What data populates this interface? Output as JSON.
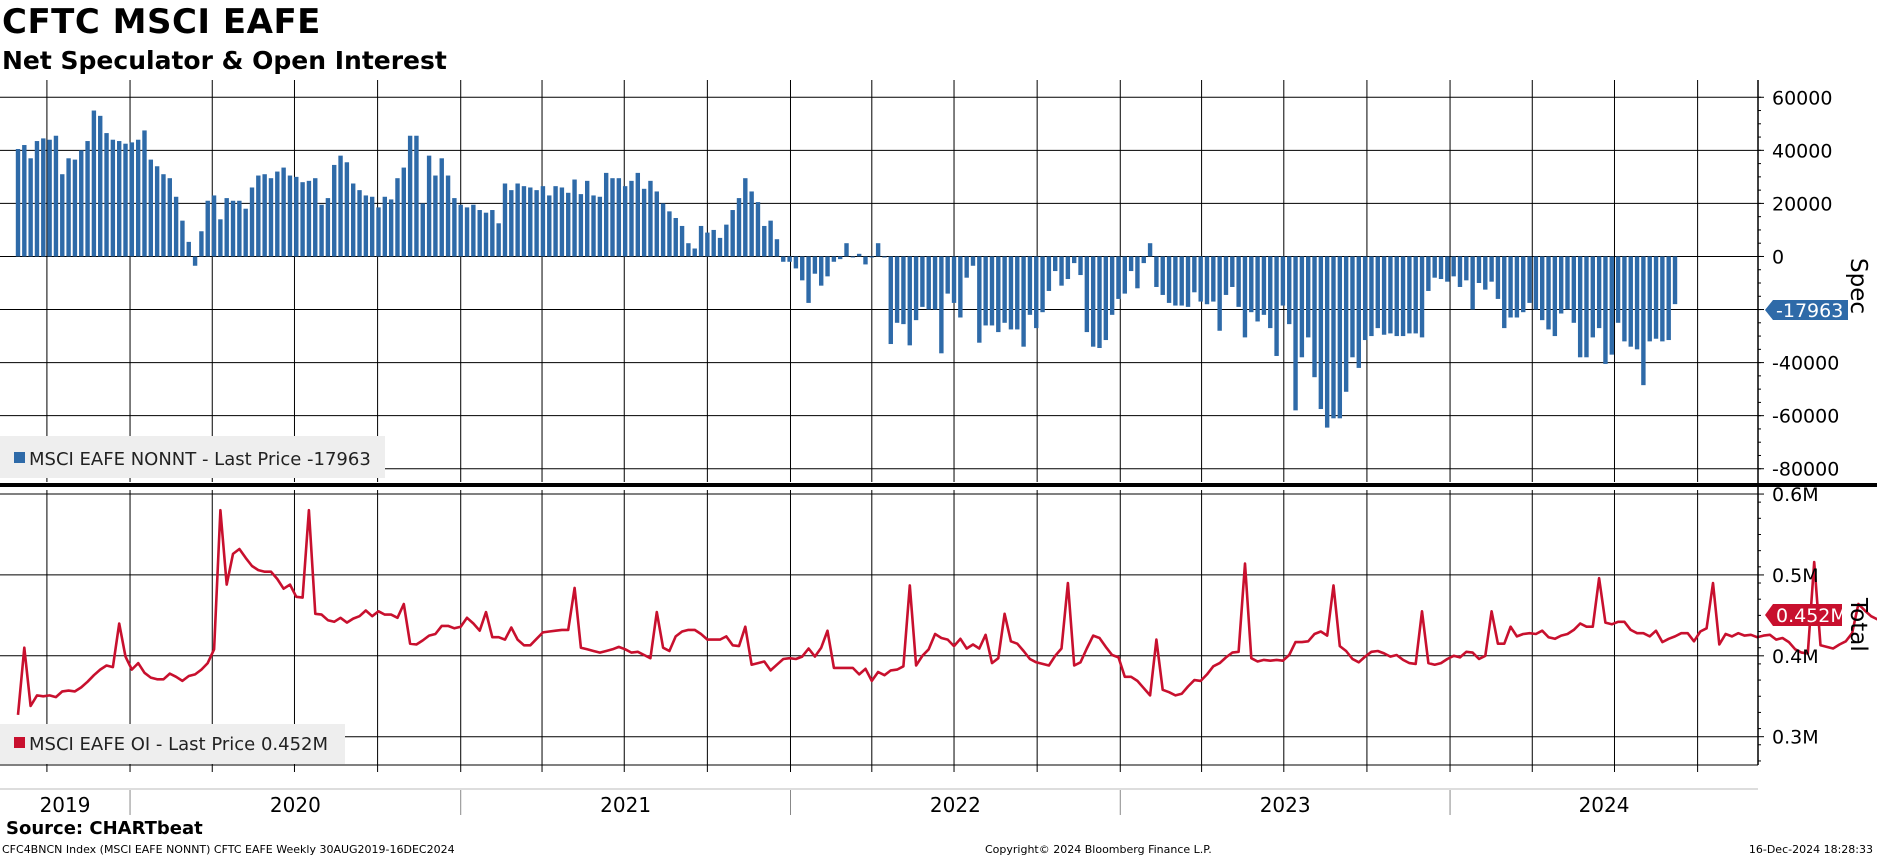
{
  "header": {
    "title": "CFTC MSCI EAFE",
    "subtitle": "Net Speculator & Open Interest"
  },
  "footer": {
    "source": "Source: CHARTbeat",
    "left": "CFC4BNCN Index (MSCI EAFE NONNT) CFTC EAFE  Weekly 30AUG2019-16DEC2024",
    "center": "Copyright© 2024 Bloomberg Finance L.P.",
    "right": "16-Dec-2024 18:28:33"
  },
  "colors": {
    "spec_bar": "#2e6aa8",
    "oi_line": "#c8102e",
    "grid": "#000000",
    "legend_bg": "#eeeeee"
  },
  "chart_data": [
    {
      "type": "bar",
      "panel": "top",
      "x_start": "2019-08-30",
      "x_end": "2024-12-16",
      "frequency": "weekly",
      "x_tick_labels": [
        "2019",
        "2020",
        "2021",
        "2022",
        "2023",
        "2024"
      ],
      "ylabel": "Spec",
      "ylim": [
        -85000,
        65000
      ],
      "yticks": [
        60000,
        40000,
        20000,
        0,
        -40000,
        -60000,
        -80000
      ],
      "ytick_labels": [
        "60000",
        "40000",
        "20000",
        "0",
        "-40000",
        "-60000",
        "-80000"
      ],
      "grid": true,
      "legend_position": "bottom-left",
      "legend": "MSCI EAFE NONNT - Last Price -17963",
      "last_value": -17963,
      "last_value_label": "-17963",
      "series": [
        {
          "values": [
            40500,
            42000,
            37000,
            43500,
            44500,
            44000,
            45500,
            31000,
            37000,
            36500,
            40000,
            43500,
            55000,
            53000,
            46500,
            44000,
            43500,
            42500,
            43000,
            44000,
            47500,
            36500,
            34000,
            31000,
            29500,
            22500,
            13500,
            5500,
            -3500,
            9500,
            21000,
            23000,
            14000,
            22000,
            21000,
            21000,
            18000,
            26000,
            30500,
            31000,
            29500,
            32000,
            33500,
            30500,
            30000,
            28000,
            28500,
            29500,
            19500,
            22000,
            34500,
            38000,
            35500,
            27500,
            25000,
            23000,
            22500,
            18500,
            22500,
            21500,
            29500,
            33500,
            45500,
            45500,
            20000,
            38000,
            30500,
            37000,
            30500,
            22000,
            19500,
            18500,
            19500,
            17500,
            16500,
            17500,
            12500,
            27500,
            25000,
            27500,
            26500,
            26000,
            25000,
            26500,
            23000,
            26500,
            26000,
            24000,
            29000,
            23500,
            28500,
            23000,
            22500,
            31500,
            29500,
            29500,
            26500,
            28500,
            31500,
            25500,
            28500,
            24500,
            20000,
            17000,
            14500,
            11500,
            5000,
            3000,
            11500,
            9000,
            10000,
            7000,
            12000,
            17500,
            22000,
            29500,
            24500,
            20500,
            11500,
            13500,
            6500,
            -2000,
            -2000,
            -4500,
            -9000,
            -17500,
            -6500,
            -11000,
            -7500,
            -2000,
            -1000,
            5000,
            0,
            1000,
            -3000,
            0,
            5000,
            0,
            -33000,
            -25000,
            -25500,
            -33500,
            -24000,
            -19000,
            -20000,
            -20000,
            -36500,
            -14000,
            -17500,
            -23000,
            -8000,
            -3500,
            -32500,
            -26000,
            -26000,
            -28500,
            -25000,
            -27500,
            -27500,
            -34000,
            -22000,
            -27000,
            -21000,
            -13000,
            -5500,
            -11000,
            -8500,
            -2500,
            -7000,
            -28500,
            -34000,
            -34500,
            -31500,
            -22000,
            -16000,
            -14000,
            -5500,
            -12000,
            -2500,
            5000,
            -11500,
            -14500,
            -17500,
            -18500,
            -18500,
            -19000,
            -13500,
            -17000,
            -18000,
            -17000,
            -28000,
            -14500,
            -11500,
            -19000,
            -30500,
            -21000,
            -24500,
            -22000,
            -27000,
            -37500,
            -18500,
            -25500,
            -58000,
            -38000,
            -30500,
            -45500,
            -57500,
            -64500,
            -61000,
            -61000,
            -51000,
            -38000,
            -42000,
            -31500,
            -30000,
            -27000,
            -29500,
            -29000,
            -30000,
            -30000,
            -29000,
            -29000,
            -30500,
            -13000,
            -8000,
            -8500,
            -9500,
            -7500,
            -11500,
            -9000,
            -20000,
            -10000,
            -12500,
            -9500,
            -16000,
            -27000,
            -23000,
            -23000,
            -21000,
            -17500,
            -20000,
            -24000,
            -27500,
            -30000,
            -21500,
            -20000,
            -25000,
            -38000,
            -38000,
            -30500,
            -27000,
            -40500,
            -37000,
            -25000,
            -32000,
            -34000,
            -35000,
            -48500,
            -32000,
            -31000,
            -32000,
            -31500,
            -17963
          ]
        }
      ]
    },
    {
      "type": "line",
      "panel": "bottom",
      "x_start": "2019-08-30",
      "x_end": "2024-12-16",
      "frequency": "weekly",
      "ylabel": "Total",
      "ylim": [
        0.265,
        0.605
      ],
      "yticks": [
        0.6,
        0.5,
        0.4,
        0.3
      ],
      "ytick_labels": [
        "0.6M",
        "0.5M",
        "0.4M",
        "0.3M"
      ],
      "grid": true,
      "legend_position": "bottom-left",
      "legend": "MSCI EAFE OI - Last Price 0.452M",
      "last_value": 0.452,
      "last_value_label": "0.452M",
      "series": [
        {
          "values": [
            0.327,
            0.41,
            0.338,
            0.351,
            0.35,
            0.351,
            0.349,
            0.356,
            0.357,
            0.356,
            0.361,
            0.368,
            0.376,
            0.383,
            0.388,
            0.386,
            0.44,
            0.399,
            0.383,
            0.391,
            0.379,
            0.373,
            0.371,
            0.371,
            0.378,
            0.374,
            0.369,
            0.375,
            0.377,
            0.383,
            0.391,
            0.408,
            0.58,
            0.488,
            0.526,
            0.532,
            0.521,
            0.511,
            0.506,
            0.504,
            0.504,
            0.495,
            0.483,
            0.488,
            0.473,
            0.472,
            0.58,
            0.452,
            0.451,
            0.444,
            0.442,
            0.447,
            0.441,
            0.446,
            0.449,
            0.456,
            0.449,
            0.455,
            0.451,
            0.451,
            0.447,
            0.464,
            0.415,
            0.414,
            0.419,
            0.425,
            0.427,
            0.437,
            0.437,
            0.434,
            0.436,
            0.447,
            0.44,
            0.431,
            0.454,
            0.423,
            0.423,
            0.42,
            0.435,
            0.42,
            0.413,
            0.413,
            0.421,
            0.429,
            0.43,
            0.431,
            0.432,
            0.432,
            0.484,
            0.41,
            0.408,
            0.406,
            0.404,
            0.406,
            0.408,
            0.411,
            0.408,
            0.404,
            0.405,
            0.401,
            0.397,
            0.454,
            0.41,
            0.406,
            0.424,
            0.43,
            0.432,
            0.432,
            0.427,
            0.42,
            0.42,
            0.42,
            0.424,
            0.413,
            0.412,
            0.436,
            0.389,
            0.391,
            0.393,
            0.382,
            0.389,
            0.396,
            0.397,
            0.396,
            0.399,
            0.409,
            0.399,
            0.41,
            0.431,
            0.385,
            0.385,
            0.385,
            0.385,
            0.377,
            0.384,
            0.369,
            0.38,
            0.376,
            0.382,
            0.383,
            0.387,
            0.487,
            0.388,
            0.4,
            0.408,
            0.427,
            0.422,
            0.42,
            0.412,
            0.421,
            0.409,
            0.414,
            0.409,
            0.426,
            0.391,
            0.397,
            0.452,
            0.418,
            0.415,
            0.406,
            0.396,
            0.392,
            0.39,
            0.388,
            0.4,
            0.409,
            0.49,
            0.388,
            0.392,
            0.409,
            0.425,
            0.422,
            0.411,
            0.401,
            0.398,
            0.374,
            0.374,
            0.369,
            0.36,
            0.351,
            0.42,
            0.358,
            0.355,
            0.351,
            0.353,
            0.362,
            0.37,
            0.369,
            0.377,
            0.387,
            0.391,
            0.398,
            0.404,
            0.405,
            0.514,
            0.397,
            0.393,
            0.395,
            0.394,
            0.395,
            0.394,
            0.401,
            0.417,
            0.417,
            0.418,
            0.427,
            0.43,
            0.425,
            0.487,
            0.412,
            0.406,
            0.396,
            0.392,
            0.399,
            0.405,
            0.406,
            0.403,
            0.399,
            0.401,
            0.395,
            0.391,
            0.39,
            0.455,
            0.391,
            0.389,
            0.391,
            0.396,
            0.4,
            0.398,
            0.405,
            0.404,
            0.396,
            0.4,
            0.455,
            0.415,
            0.415,
            0.436,
            0.424,
            0.427,
            0.428,
            0.427,
            0.431,
            0.423,
            0.421,
            0.425,
            0.427,
            0.432,
            0.44,
            0.436,
            0.436,
            0.496,
            0.441,
            0.439,
            0.442,
            0.442,
            0.432,
            0.428,
            0.428,
            0.424,
            0.431,
            0.417,
            0.421,
            0.424,
            0.428,
            0.428,
            0.418,
            0.43,
            0.434,
            0.49,
            0.414,
            0.427,
            0.424,
            0.428,
            0.425,
            0.426,
            0.423,
            0.425,
            0.426,
            0.42,
            0.422,
            0.417,
            0.408,
            0.404,
            0.403,
            0.516,
            0.413,
            0.411,
            0.409,
            0.414,
            0.418,
            0.428,
            0.464,
            0.456,
            0.449,
            0.445,
            0.455,
            0.452
          ]
        }
      ]
    }
  ]
}
